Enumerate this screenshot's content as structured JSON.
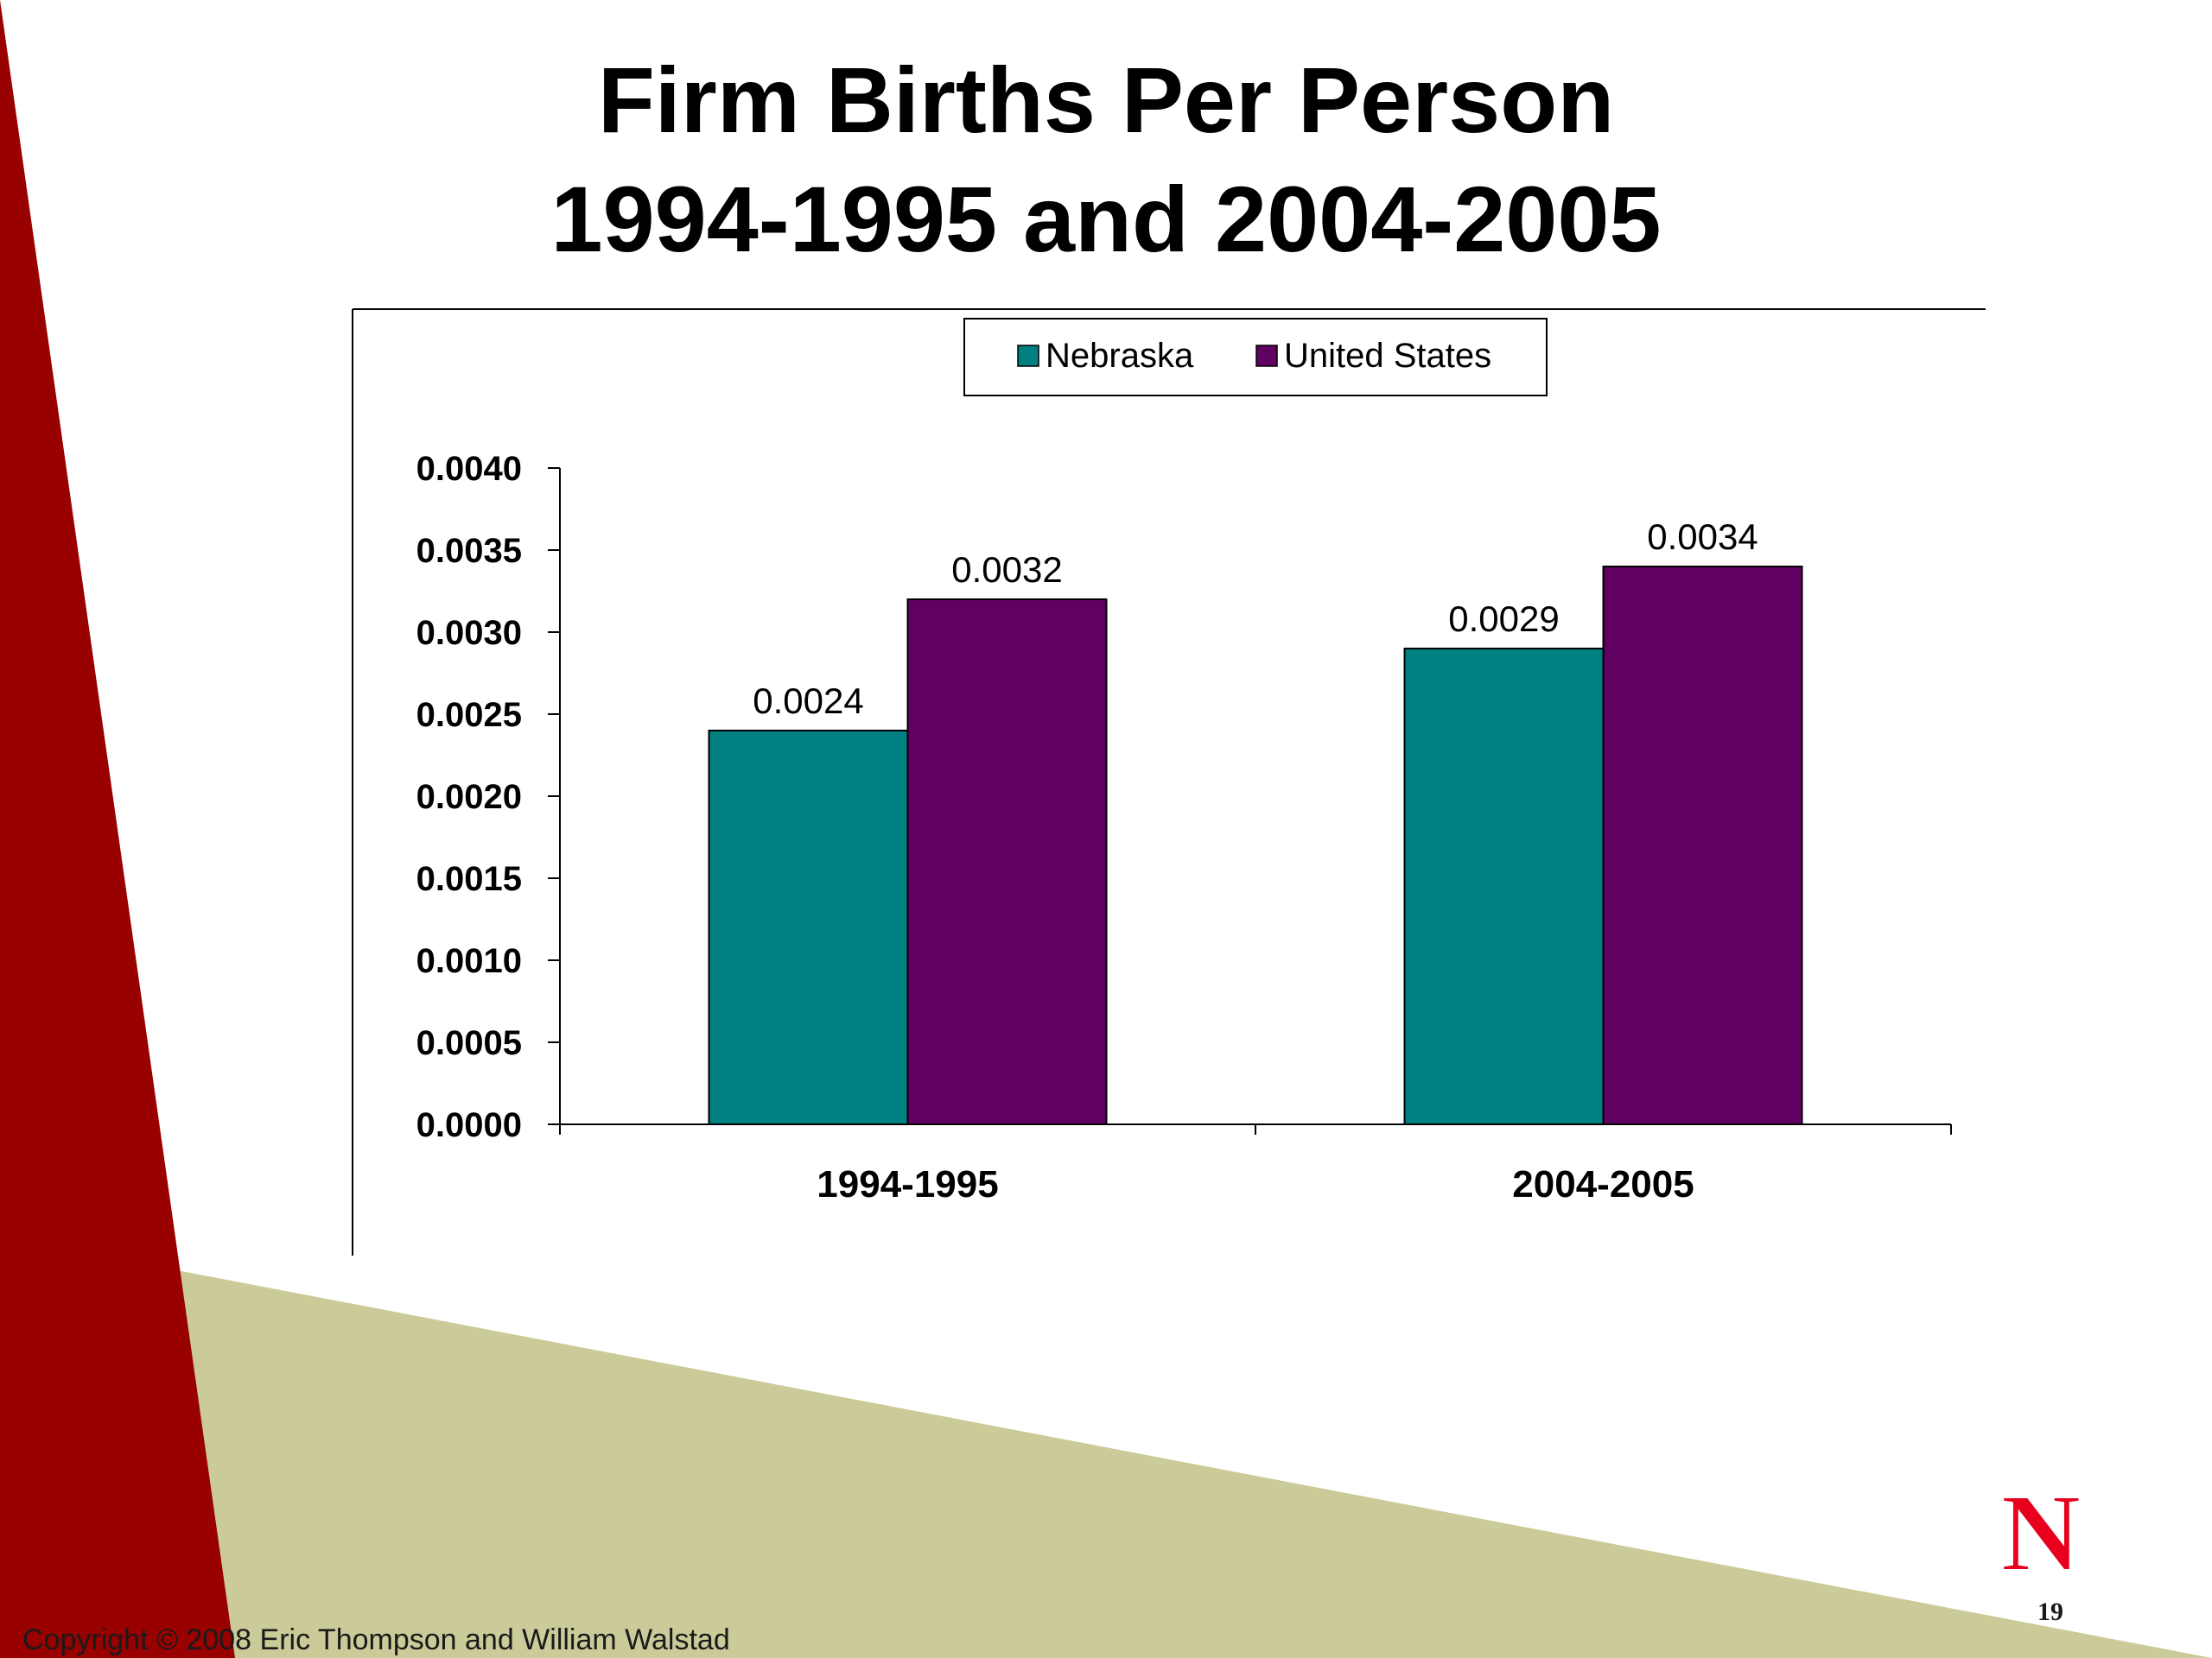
{
  "slide": {
    "title_line_1": "Firm Births Per Person",
    "title_line_2": "1994-1995 and 2004-2005",
    "copyright": "Copyright © 2008 Eric Thompson and William Walstad",
    "page_number": "19",
    "logo_letter": "N",
    "colors": {
      "red_band": "#990000",
      "olive_band": "#CBCB99",
      "logo_red": "#E8001C"
    }
  },
  "chart_data": {
    "type": "bar",
    "title": "",
    "xlabel": "",
    "ylabel": "",
    "categories": [
      "1994-1995",
      "2004-2005"
    ],
    "series": [
      {
        "name": "Nebraska",
        "values": [
          0.0024,
          0.0029
        ],
        "labels": [
          "0.0024",
          "0.0029"
        ],
        "color": "#008080"
      },
      {
        "name": "United States",
        "values": [
          0.0032,
          0.0034
        ],
        "labels": [
          "0.0032",
          "0.0034"
        ],
        "color": "#600060"
      }
    ],
    "ylim": [
      0,
      0.004
    ],
    "yticks": [
      "0.0000",
      "0.0005",
      "0.0010",
      "0.0015",
      "0.0020",
      "0.0025",
      "0.0030",
      "0.0035",
      "0.0040"
    ],
    "legend_position": "top-center",
    "grid": false
  }
}
